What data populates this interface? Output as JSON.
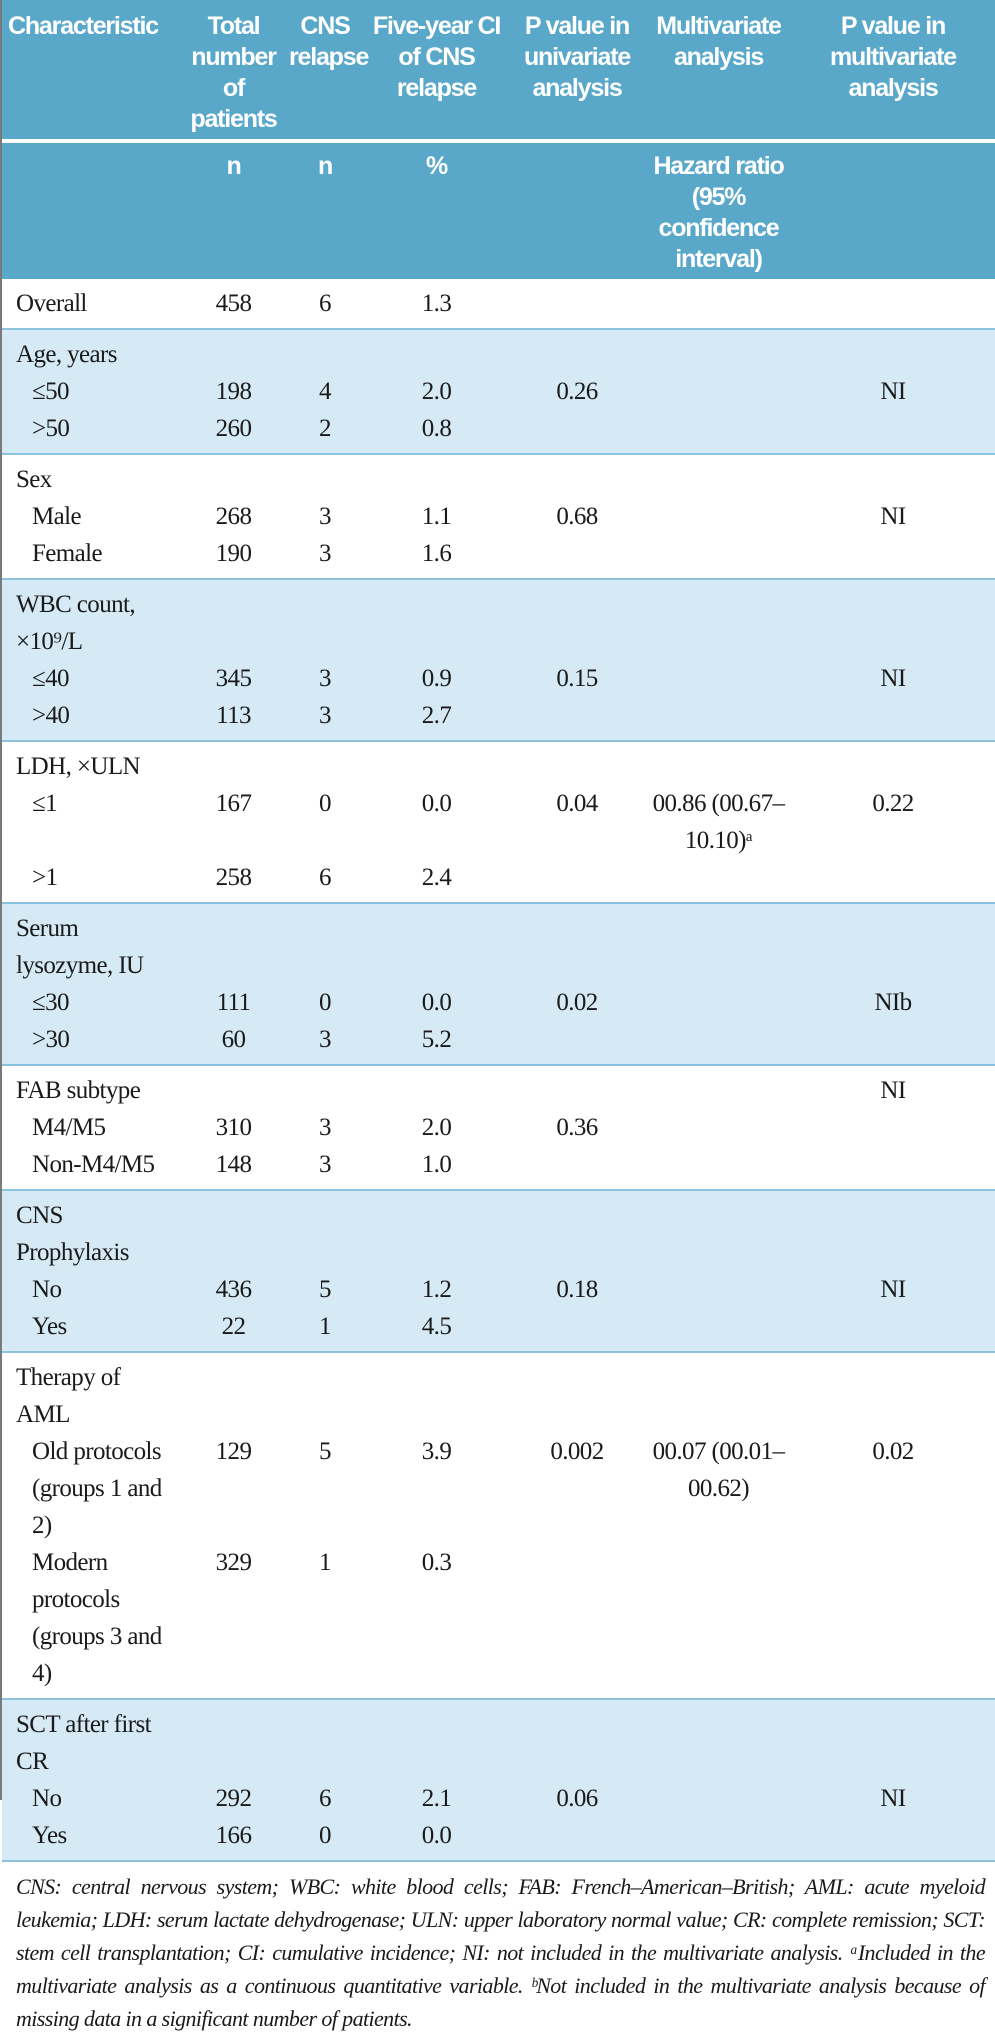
{
  "header": {
    "columns": [
      "Characteristic",
      "Total number of patients",
      "CNS relapse",
      "Five-year CI of CNS relapse",
      "P value in univariate analysis",
      "Multivariate analysis",
      "P value in multivariate analysis"
    ],
    "units": [
      "",
      "n",
      "n",
      "%",
      "",
      "Hazard ratio (95% confidence interval)",
      ""
    ]
  },
  "colors": {
    "header_bg": "#59a8ca",
    "shade_bg": "#d5eaf5",
    "rule": "#8cc3de"
  },
  "groups": [
    {
      "label": "Overall",
      "values": [
        "458",
        "6",
        "1.3",
        "",
        "",
        ""
      ],
      "rows": []
    },
    {
      "label": "Age, years",
      "values": null,
      "rows": [
        {
          "label": "≤50",
          "values": [
            "198",
            "4",
            "2.0",
            "0.26",
            "",
            "NI"
          ]
        },
        {
          "label": ">50",
          "values": [
            "260",
            "2",
            "0.8",
            "",
            "",
            ""
          ]
        }
      ]
    },
    {
      "label": "Sex",
      "values": null,
      "rows": [
        {
          "label": "Male",
          "values": [
            "268",
            "3",
            "1.1",
            "0.68",
            "",
            "NI"
          ]
        },
        {
          "label": "Female",
          "values": [
            "190",
            "3",
            "1.6",
            "",
            "",
            ""
          ]
        }
      ]
    },
    {
      "label": "WBC count, ×10⁹/L",
      "values": null,
      "rows": [
        {
          "label": "≤40",
          "values": [
            "345",
            "3",
            "0.9",
            "0.15",
            "",
            "NI"
          ]
        },
        {
          "label": ">40",
          "values": [
            "113",
            "3",
            "2.7",
            "",
            "",
            ""
          ]
        }
      ]
    },
    {
      "label": "LDH, ×ULN",
      "values": null,
      "rows": [
        {
          "label": "≤1",
          "values": [
            "167",
            "0",
            "0.0",
            "0.04",
            "00.86 (00.67–10.10)ᵃ",
            "0.22"
          ]
        },
        {
          "label": ">1",
          "values": [
            "258",
            "6",
            "2.4",
            "",
            "",
            ""
          ]
        }
      ]
    },
    {
      "label": "Serum lysozyme, IU",
      "values": null,
      "rows": [
        {
          "label": "≤30",
          "values": [
            "111",
            "0",
            "0.0",
            "0.02",
            "",
            "NIb"
          ]
        },
        {
          "label": ">30",
          "values": [
            "60",
            "3",
            "5.2",
            "",
            "",
            ""
          ]
        }
      ]
    },
    {
      "label": "FAB subtype",
      "values": [
        "",
        "",
        "",
        "",
        "",
        "NI"
      ],
      "rows": [
        {
          "label": "M4/M5",
          "values": [
            "310",
            "3",
            "2.0",
            "0.36",
            "",
            ""
          ]
        },
        {
          "label": "Non-M4/M5",
          "values": [
            "148",
            "3",
            "1.0",
            "",
            "",
            ""
          ]
        }
      ]
    },
    {
      "label": "CNS Prophylaxis",
      "values": null,
      "rows": [
        {
          "label": "No",
          "values": [
            "436",
            "5",
            "1.2",
            "0.18",
            "",
            "NI"
          ]
        },
        {
          "label": "Yes",
          "values": [
            "22",
            "1",
            "4.5",
            "",
            "",
            ""
          ]
        }
      ]
    },
    {
      "label": "Therapy of AML",
      "values": null,
      "rows": [
        {
          "label": "Old protocols (groups 1 and 2)",
          "values": [
            "129",
            "5",
            "3.9",
            "0.002",
            "00.07 (00.01–00.62)",
            "0.02"
          ]
        },
        {
          "label": "Modern protocols (groups 3 and 4)",
          "values": [
            "329",
            "1",
            "0.3",
            "",
            "",
            ""
          ]
        }
      ]
    },
    {
      "label": "SCT after first CR",
      "values": null,
      "rows": [
        {
          "label": "No",
          "values": [
            "292",
            "6",
            "2.1",
            "0.06",
            "",
            "NI"
          ]
        },
        {
          "label": "Yes",
          "values": [
            "166",
            "0",
            "0.0",
            "",
            "",
            ""
          ]
        }
      ]
    }
  ],
  "footnote": "CNS: central nervous system; WBC: white blood cells; FAB: French–American–British; AML: acute myeloid leukemia; LDH: serum lactate dehydrogenase; ULN: upper laboratory normal value; CR: complete remission; SCT: stem cell transplantation; CI: cumulative incidence; NI: not included in the multivariate analysis. ᵃIncluded in the multivariate analysis as a continuous quantitative variable. ᵇNot included in the multivariate analysis because of missing data in a significant number of patients."
}
